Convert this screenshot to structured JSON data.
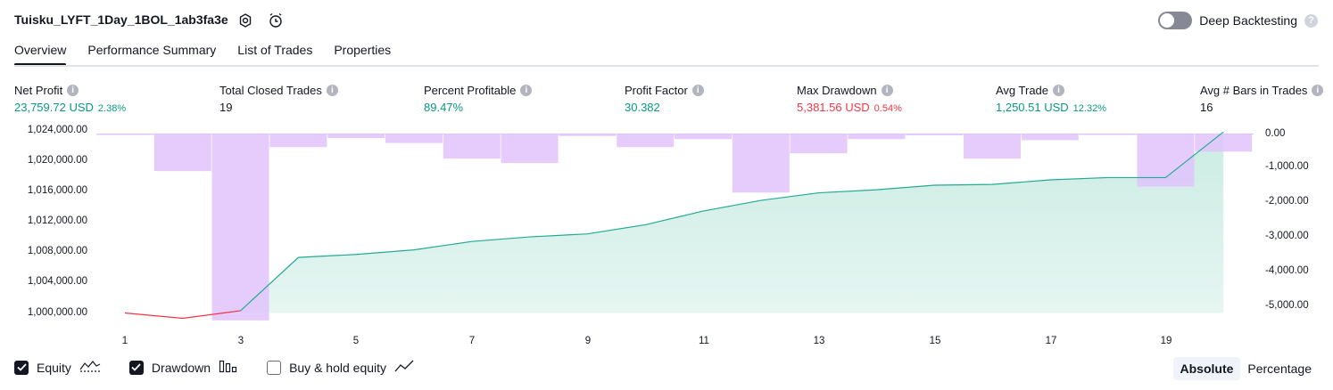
{
  "header": {
    "title": "Tuisku_LYFT_1Day_1BOL_1ab3fa3e",
    "deep_backtesting_label": "Deep Backtesting",
    "help_glyph": "?"
  },
  "tabs": [
    {
      "label": "Overview",
      "active": true
    },
    {
      "label": "Performance Summary",
      "active": false
    },
    {
      "label": "List of Trades",
      "active": false
    },
    {
      "label": "Properties",
      "active": false
    }
  ],
  "stats": {
    "info_glyph": "i",
    "net_profit": {
      "label": "Net Profit",
      "value": "23,759.72 USD",
      "pct": "2.38%"
    },
    "total_closed_trades": {
      "label": "Total Closed Trades",
      "value": "19"
    },
    "percent_profitable": {
      "label": "Percent Profitable",
      "value": "89.47%"
    },
    "profit_factor": {
      "label": "Profit Factor",
      "value": "30.382"
    },
    "max_drawdown": {
      "label": "Max Drawdown",
      "value": "5,381.56 USD",
      "pct": "0.54%"
    },
    "avg_trade": {
      "label": "Avg Trade",
      "value": "1,250.51 USD",
      "pct": "12.32%"
    },
    "avg_bars": {
      "label": "Avg # Bars in Trades",
      "value": "16"
    }
  },
  "colors": {
    "equity_line": "#22ab94",
    "equity_fill": "#c8ebe1",
    "equity_below_line": "#f23645",
    "drawdown_bar": "#e1c3fd",
    "green": "#089981",
    "red": "#f23645"
  },
  "chart_data": {
    "type": "bar+area",
    "x": [
      1,
      2,
      3,
      4,
      5,
      6,
      7,
      8,
      9,
      10,
      11,
      12,
      13,
      14,
      15,
      16,
      17,
      18,
      19,
      20
    ],
    "x_tick_labels": [
      "1",
      "3",
      "5",
      "7",
      "9",
      "11",
      "13",
      "15",
      "17",
      "19"
    ],
    "left_axis": {
      "ticks": [
        "1,024,000.00",
        "1,020,000.00",
        "1,016,000.00",
        "1,012,000.00",
        "1,008,000.00",
        "1,004,000.00",
        "1,000,000.00"
      ],
      "ylim": [
        1000000,
        1024000
      ]
    },
    "right_axis": {
      "ticks": [
        "0.00",
        "-1,000.00",
        "-2,000.00",
        "-3,000.00",
        "-4,000.00",
        "-5,000.00"
      ],
      "ylim": [
        -5200,
        0
      ]
    },
    "series": [
      {
        "name": "Equity",
        "type": "area",
        "axis": "left",
        "values": [
          1000000,
          999300,
          1000300,
          1007300,
          1007700,
          1008300,
          1009400,
          1010000,
          1010400,
          1011600,
          1013400,
          1014800,
          1015800,
          1016200,
          1016800,
          1016900,
          1017500,
          1017800,
          1017800,
          1023800
        ]
      },
      {
        "name": "Drawdown",
        "type": "bar",
        "axis": "right",
        "values": [
          -20,
          -1080,
          -5380,
          -390,
          -130,
          -270,
          -720,
          -850,
          -70,
          -390,
          -160,
          -1700,
          -570,
          -160,
          -50,
          -720,
          -190,
          -20,
          -1530,
          -520
        ]
      }
    ]
  },
  "legend": {
    "equity": "Equity",
    "drawdown": "Drawdown",
    "buy_hold": "Buy & hold equity"
  },
  "view_mode": {
    "absolute": "Absolute",
    "percentage": "Percentage"
  }
}
